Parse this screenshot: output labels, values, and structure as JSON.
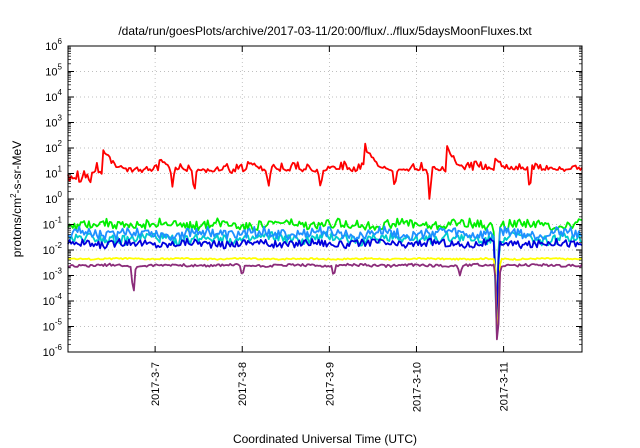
{
  "chart_data": {
    "type": "line",
    "title": "/data/run/goesPlots/archive/2017-03-11/20:00/flux/../flux/5daysMoonFluxes.txt",
    "xlabel": "Coordinated Universal Time (UTC)",
    "ylabel": {
      "prefix": "protons/cm",
      "sup": "2",
      "suffix": "-s-sr-MeV"
    },
    "y_scale": "log",
    "ylim": [
      1e-06,
      1000000.0
    ],
    "y_ticks": [
      {
        "base": "10",
        "exp": "-6"
      },
      {
        "base": "10",
        "exp": "-5"
      },
      {
        "base": "10",
        "exp": "-4"
      },
      {
        "base": "10",
        "exp": "-3"
      },
      {
        "base": "10",
        "exp": "-2"
      },
      {
        "base": "10",
        "exp": "-1"
      },
      {
        "base": "10",
        "exp": "0"
      },
      {
        "base": "10",
        "exp": "1"
      },
      {
        "base": "10",
        "exp": "2"
      },
      {
        "base": "10",
        "exp": "3"
      },
      {
        "base": "10",
        "exp": "4"
      },
      {
        "base": "10",
        "exp": "5"
      },
      {
        "base": "10",
        "exp": "6"
      }
    ],
    "x_domain_days": [
      6.0,
      11.9
    ],
    "x_ticks": [
      {
        "label": "2017-3-7",
        "day": 7
      },
      {
        "label": "2017-3-8",
        "day": 8
      },
      {
        "label": "2017-3-9",
        "day": 9
      },
      {
        "label": "2017-3-10",
        "day": 10
      },
      {
        "label": "2017-3-11",
        "day": 11
      }
    ],
    "grid": true,
    "legend": "none",
    "series": [
      {
        "color": "#ff0000",
        "base": 12,
        "noise": 0.3,
        "events": [
          [
            6.4,
            100
          ],
          [
            7.05,
            40
          ],
          [
            8.05,
            35
          ],
          [
            9.4,
            150
          ],
          [
            10.35,
            110
          ],
          [
            10.9,
            40
          ],
          [
            11.85,
            15
          ]
        ],
        "dips": [
          [
            6.25,
            4
          ],
          [
            7.2,
            3
          ],
          [
            7.45,
            2
          ],
          [
            8.3,
            3
          ],
          [
            8.9,
            3
          ],
          [
            9.75,
            3
          ],
          [
            10.15,
            1
          ],
          [
            11.3,
            2.5
          ]
        ]
      },
      {
        "color": "#00ee00",
        "base": 0.1,
        "noise": 0.18,
        "dips": [
          [
            10.92,
            1e-05
          ]
        ]
      },
      {
        "color": "#00cccc",
        "base": 0.028,
        "noise": 0.2,
        "dips": [
          [
            10.92,
            4e-06
          ]
        ]
      },
      {
        "color": "#1e90ff",
        "base": 0.045,
        "noise": 0.2,
        "dips": [
          [
            10.92,
            3e-05
          ]
        ]
      },
      {
        "color": "#0000dd",
        "base": 0.018,
        "noise": 0.15,
        "dips": [
          [
            10.92,
            2e-05
          ]
        ]
      },
      {
        "color": "#ffff00",
        "base": 0.0045,
        "noise": 0.03,
        "dips": [
          [
            10.93,
            2e-06
          ]
        ]
      },
      {
        "color": "#8b2c7a",
        "base": 0.0025,
        "noise": 0.05,
        "dips": [
          [
            6.75,
            0.0002
          ],
          [
            8.0,
            0.001
          ],
          [
            9.05,
            0.001
          ],
          [
            10.5,
            0.001
          ],
          [
            10.93,
            1e-06
          ]
        ]
      }
    ]
  }
}
